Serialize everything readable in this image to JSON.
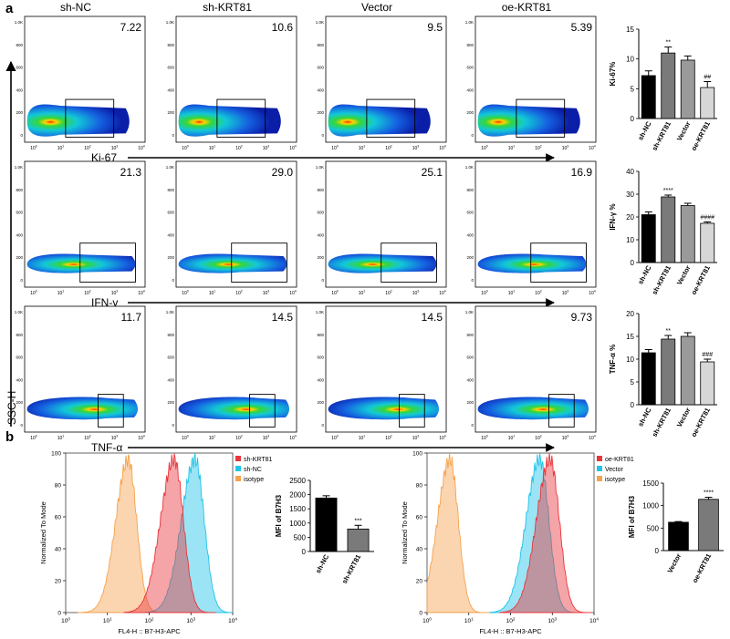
{
  "panel_labels": {
    "a": "a",
    "b": "b"
  },
  "colors": {
    "ink": "#000000",
    "bar_black": "#000000",
    "bar_dark": "#7a7a7a",
    "bar_mid": "#9a9a9a",
    "bar_light": "#d7d7d7",
    "hist_red": "#e8353b",
    "hist_cyan": "#20c4e8",
    "hist_orange": "#f6a24e"
  },
  "flow": {
    "columns": [
      "sh-NC",
      "sh-KRT81",
      "Vector",
      "oe-KRT81"
    ],
    "y_axis_label": "SSC-H",
    "y_ticks": [
      "1.0K",
      "800",
      "600",
      "400",
      "200",
      "0"
    ],
    "x_ticks": [
      "10^0",
      "10^1",
      "10^2",
      "10^3",
      "10^4"
    ],
    "rows": [
      {
        "marker": "Ki-67",
        "percents": [
          "7.22",
          "10.6",
          "9.5",
          "5.39"
        ]
      },
      {
        "marker": "IFN-γ",
        "percents": [
          "21.3",
          "29.0",
          "25.1",
          "16.9"
        ]
      },
      {
        "marker": "TNF-α",
        "percents": [
          "11.7",
          "14.5",
          "14.5",
          "9.73"
        ]
      }
    ]
  },
  "chart_data": [
    {
      "type": "bar",
      "title": "",
      "ylabel": "Ki-67%",
      "ylim": [
        0,
        15
      ],
      "yticks": [
        0,
        5,
        10,
        15
      ],
      "categories": [
        "sh-NC",
        "sh-KRT81",
        "Vector",
        "oe-KRT81"
      ],
      "values": [
        7.2,
        11.0,
        9.8,
        5.2
      ],
      "errors": [
        0.8,
        1.0,
        0.7,
        1.0
      ],
      "annotations": [
        "",
        "**",
        "",
        "##"
      ]
    },
    {
      "type": "bar",
      "title": "",
      "ylabel": "IFN-γ %",
      "ylim": [
        0,
        40
      ],
      "yticks": [
        0,
        10,
        20,
        30,
        40
      ],
      "categories": [
        "sh-NC",
        "sh-KRT81",
        "Vector",
        "oe-KRT81"
      ],
      "values": [
        21.0,
        28.8,
        25.0,
        17.2
      ],
      "errors": [
        1.2,
        0.8,
        1.0,
        0.6
      ],
      "annotations": [
        "",
        "****",
        "",
        "####"
      ]
    },
    {
      "type": "bar",
      "title": "",
      "ylabel": "TNF-α %",
      "ylim": [
        0,
        20
      ],
      "yticks": [
        0,
        5,
        10,
        15,
        20
      ],
      "categories": [
        "sh-NC",
        "sh-KRT81",
        "Vector",
        "oe-KRT81"
      ],
      "values": [
        11.4,
        14.4,
        15.0,
        9.4
      ],
      "errors": [
        0.7,
        0.8,
        0.8,
        0.6
      ],
      "annotations": [
        "",
        "**",
        "",
        "###"
      ]
    },
    {
      "type": "bar",
      "title": "",
      "ylabel": "MFI of B7H3",
      "ylim": [
        0,
        2500
      ],
      "yticks": [
        0,
        500,
        1000,
        1500,
        2000,
        2500
      ],
      "categories": [
        "sh-NC",
        "sh-KRT81"
      ],
      "values": [
        1880,
        790
      ],
      "errors": [
        80,
        130
      ],
      "annotations": [
        "",
        "***"
      ]
    },
    {
      "type": "bar",
      "title": "",
      "ylabel": "MFI of B7H3",
      "ylim": [
        0,
        1500
      ],
      "yticks": [
        0,
        500,
        1000,
        1500
      ],
      "categories": [
        "Vector",
        "oe-KRT81"
      ],
      "values": [
        630,
        1140
      ],
      "errors": [
        15,
        45
      ],
      "annotations": [
        "",
        "****"
      ]
    }
  ],
  "histograms": [
    {
      "xlabel": "FL4-H :: B7-H3-APC",
      "ylabel": "Normalized To Mode",
      "yticks": [
        "0",
        "20",
        "40",
        "60",
        "80",
        "100"
      ],
      "xticks": [
        "10^0",
        "10^1",
        "10^2",
        "10^3",
        "10^4"
      ],
      "legend": [
        {
          "label": "sh-KRT81",
          "color": "#e8353b"
        },
        {
          "label": "sh-NC",
          "color": "#20c4e8"
        },
        {
          "label": "isotype",
          "color": "#f6a24e"
        }
      ],
      "peaks_log10": [
        2.6,
        3.1,
        1.5
      ]
    },
    {
      "xlabel": "FL4-H :: B7-H3-APC",
      "ylabel": "Normalized To Mode",
      "yticks": [
        "0",
        "20",
        "40",
        "60",
        "80",
        "100"
      ],
      "xticks": [
        "10^0",
        "10^1",
        "10^2",
        "10^3",
        "10^4"
      ],
      "legend": [
        {
          "label": "oe-KRT81",
          "color": "#e8353b"
        },
        {
          "label": "Vector",
          "color": "#20c4e8"
        },
        {
          "label": "isotype",
          "color": "#f6a24e"
        }
      ],
      "peaks_log10": [
        2.95,
        2.7,
        0.55
      ]
    }
  ]
}
